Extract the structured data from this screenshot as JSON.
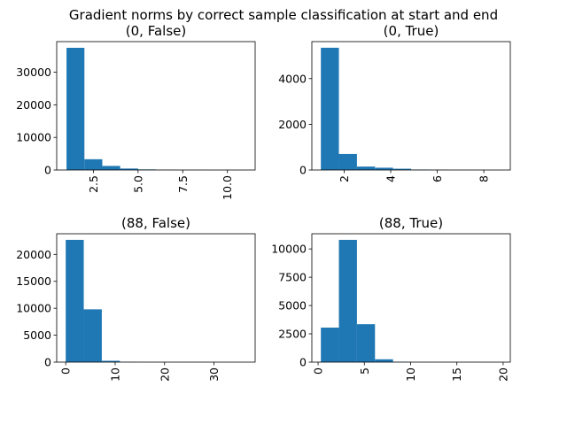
{
  "figure": {
    "suptitle": "Gradient norms by correct sample classification at start and end"
  },
  "colors": {
    "bar": "#1f77b4",
    "axis": "#000000",
    "background": "#ffffff"
  },
  "chart_data": [
    {
      "type": "bar",
      "title": "(0, False)",
      "xlabel": "",
      "ylabel": "",
      "grid": false,
      "bin_edges": [
        1.0,
        2.0,
        3.0,
        4.0,
        5.0,
        6.0,
        7.0,
        8.0,
        9.0,
        10.0,
        11.0
      ],
      "values": [
        37500,
        3300,
        1250,
        450,
        180,
        70,
        30,
        15,
        8,
        5
      ],
      "xlim": [
        0.45,
        11.55
      ],
      "ylim": [
        0,
        39400
      ],
      "xticks": [
        2.5,
        5.0,
        7.5,
        10.0
      ],
      "xtick_labels": [
        "2.5",
        "5.0",
        "7.5",
        "10.0"
      ],
      "yticks": [
        0,
        10000,
        20000,
        30000
      ],
      "ytick_labels": [
        "0",
        "10000",
        "20000",
        "30000"
      ]
    },
    {
      "type": "bar",
      "title": "(0, True)",
      "xlabel": "",
      "ylabel": "",
      "grid": false,
      "bin_edges": [
        1.0,
        1.775,
        2.55,
        3.325,
        4.1,
        4.875,
        5.65,
        6.425,
        7.2,
        7.975,
        8.75
      ],
      "values": [
        5350,
        700,
        150,
        100,
        55,
        20,
        10,
        5,
        3,
        2
      ],
      "xlim": [
        0.6125,
        9.1375
      ],
      "ylim": [
        0,
        5618
      ],
      "xticks": [
        2,
        4,
        6,
        8
      ],
      "xtick_labels": [
        "2",
        "4",
        "6",
        "8"
      ],
      "yticks": [
        0,
        2000,
        4000
      ],
      "ytick_labels": [
        "0",
        "2000",
        "4000"
      ]
    },
    {
      "type": "bar",
      "title": "(88, False)",
      "xlabel": "",
      "ylabel": "",
      "grid": false,
      "bin_edges": [
        0.0,
        3.65,
        7.3,
        10.95,
        14.6,
        18.25,
        21.9,
        25.55,
        29.2,
        32.85,
        36.5
      ],
      "values": [
        22700,
        9800,
        250,
        40,
        15,
        8,
        4,
        3,
        2,
        1
      ],
      "xlim": [
        -1.825,
        38.325
      ],
      "ylim": [
        0,
        23835
      ],
      "xticks": [
        0,
        10,
        20,
        30
      ],
      "xtick_labels": [
        "0",
        "10",
        "20",
        "30"
      ],
      "yticks": [
        0,
        5000,
        10000,
        15000,
        20000
      ],
      "ytick_labels": [
        "0",
        "5000",
        "10000",
        "15000",
        "20000"
      ]
    },
    {
      "type": "bar",
      "title": "(88, True)",
      "xlabel": "",
      "ylabel": "",
      "grid": false,
      "bin_edges": [
        0.3,
        2.25,
        4.2,
        6.15,
        8.1,
        10.05,
        12.0,
        13.95,
        15.9,
        17.85,
        19.8
      ],
      "values": [
        3050,
        10800,
        3350,
        250,
        30,
        10,
        5,
        3,
        2,
        1
      ],
      "xlim": [
        -0.675,
        20.775
      ],
      "ylim": [
        0,
        11340
      ],
      "xticks": [
        0,
        5,
        10,
        15,
        20
      ],
      "xtick_labels": [
        "0",
        "5",
        "10",
        "15",
        "20"
      ],
      "yticks": [
        0,
        2500,
        5000,
        7500,
        10000
      ],
      "ytick_labels": [
        "0",
        "2500",
        "5000",
        "7500",
        "10000"
      ]
    }
  ]
}
